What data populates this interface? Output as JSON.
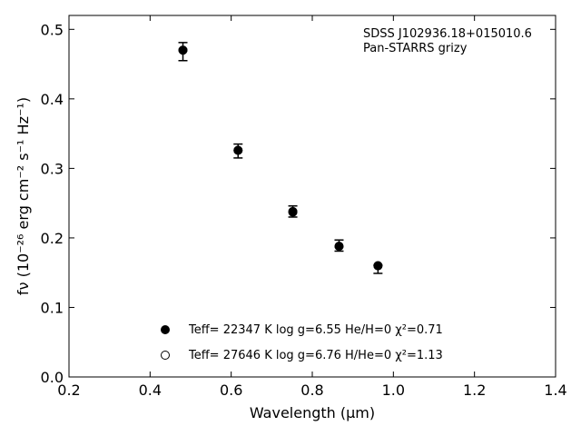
{
  "chart_data": {
    "type": "scatter",
    "xlabel": "Wavelength (μm)",
    "ylabel": "fν (10⁻²⁶ erg cm⁻² s⁻¹ Hz⁻¹)",
    "xlim": [
      0.2,
      1.4
    ],
    "ylim": [
      0.0,
      0.52
    ],
    "xticks": [
      "0.2",
      "0.4",
      "0.6",
      "0.8",
      "1.0",
      "1.2",
      "1.4"
    ],
    "yticks": [
      "0.0",
      "0.1",
      "0.2",
      "0.3",
      "0.4",
      "0.5"
    ],
    "annotation": [
      "SDSS J102936.18+015010.6",
      "Pan-STARRS grizy"
    ],
    "observed": {
      "x": [
        0.481,
        0.617,
        0.752,
        0.866,
        0.962
      ],
      "y": [
        0.468,
        0.325,
        0.238,
        0.189,
        0.155
      ],
      "yerr": [
        0.013,
        0.01,
        0.008,
        0.008,
        0.006
      ]
    },
    "series": [
      {
        "name": "Teff= 22347 K  log g=6.55  He/H=0  χ²=0.71",
        "marker": "filled",
        "x": [
          0.481,
          0.617,
          0.752,
          0.866,
          0.962
        ],
        "y": [
          0.47,
          0.326,
          0.237,
          0.188,
          0.16
        ]
      },
      {
        "name": "Teff= 27646 K  log g=6.76  H/He=0  χ²=1.13",
        "marker": "open",
        "x": [
          0.481,
          0.617,
          0.752,
          0.866,
          0.962
        ],
        "y": [
          0.47,
          0.326,
          0.238,
          0.188,
          0.16
        ]
      }
    ],
    "grid": false,
    "legend_position": "bottom-center"
  }
}
